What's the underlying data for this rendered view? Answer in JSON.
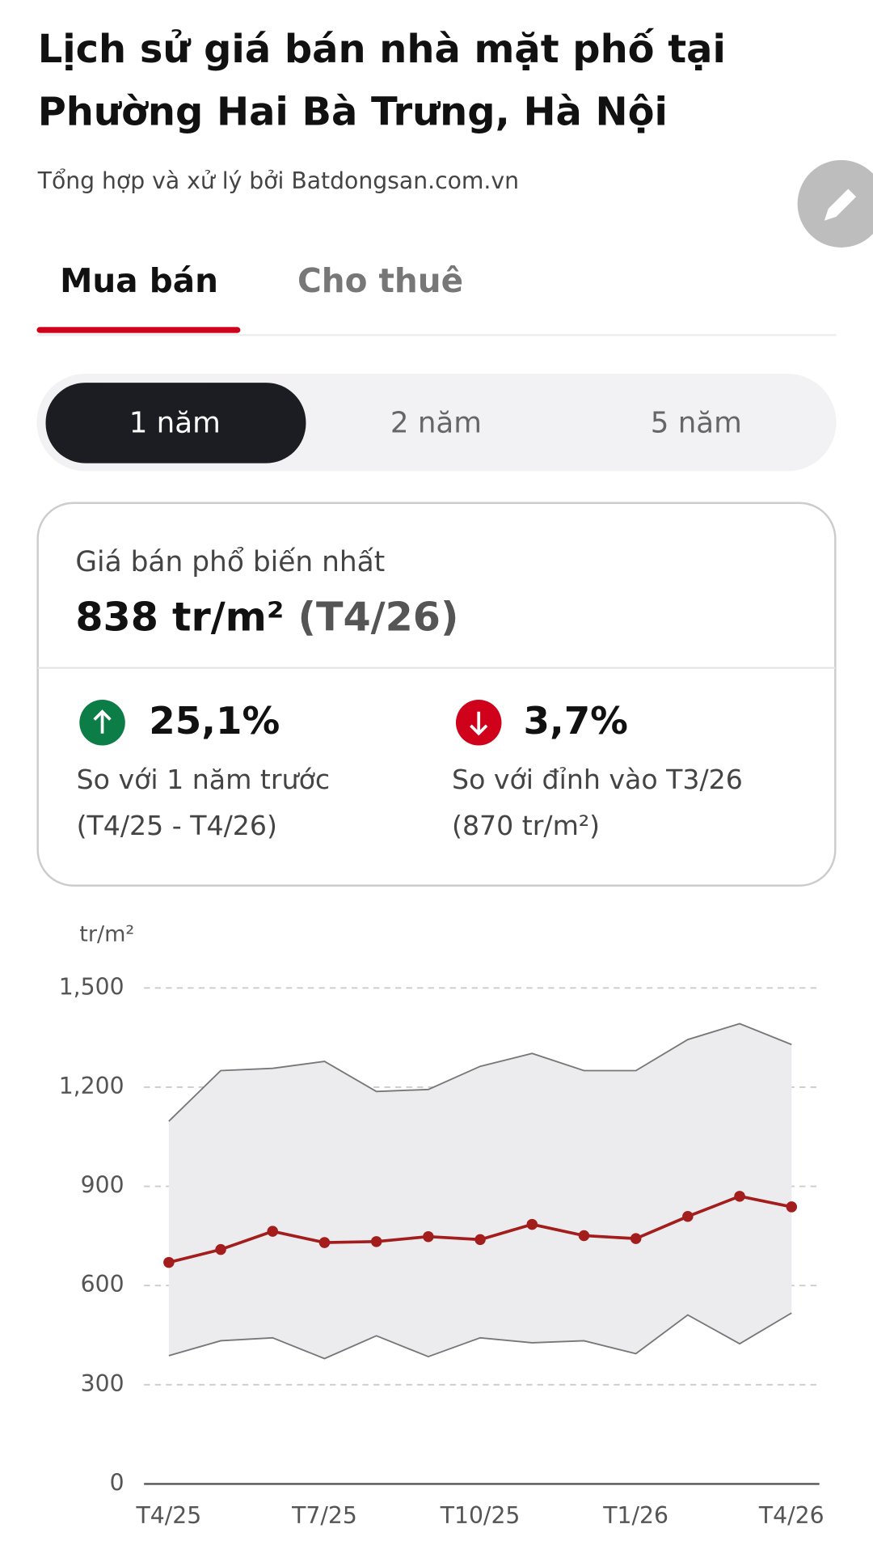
{
  "header": {
    "title_line1": "Lịch sử giá bán nhà mặt phố tại",
    "title_line2": "Phường Hai Bà Trưng, Hà Nội",
    "subtitle": "Tổng hợp và xử lý bởi Batdongsan.com.vn"
  },
  "tabs": [
    "Mua bán",
    "Cho thuê"
  ],
  "periods": [
    "1 năm",
    "2 năm",
    "5 năm"
  ],
  "summary": {
    "label": "Giá bán phổ biến nhất",
    "price": "838 tr/m²",
    "price_period": "(T4/26)",
    "change_year": "25,1%",
    "change_year_label": "So với 1 năm trước",
    "change_year_range": "(T4/25 - T4/26)",
    "change_peak": "3,7%",
    "change_peak_label": "So với đỉnh vào T3/26",
    "change_peak_value": "(870 tr/m²)"
  },
  "chart_data": {
    "type": "line",
    "y_label": "tr/m²",
    "categories": [
      "T4/25",
      null,
      null,
      "T7/25",
      null,
      null,
      "T10/25",
      null,
      null,
      "T1/26",
      null,
      null,
      "T4/26"
    ],
    "values": [
      670,
      709,
      764,
      730,
      733,
      748,
      739,
      785,
      751,
      742,
      809,
      870,
      838
    ],
    "color": "#a31d1d",
    "band": {
      "upper": [
        1097,
        1250,
        1257,
        1278,
        1187,
        1193,
        1263,
        1302,
        1250,
        1250,
        1344,
        1392,
        1329
      ],
      "lower": [
        388,
        433,
        442,
        379,
        448,
        385,
        442,
        427,
        433,
        394,
        511,
        424,
        517
      ],
      "color": "#ececee"
    },
    "ylim": [
      0,
      1500
    ],
    "yticks": [
      0,
      300,
      600,
      900,
      {
        "value": 1200,
        "label": "1,200"
      },
      {
        "value": 1500,
        "label": "1,500"
      }
    ],
    "grid": true
  }
}
